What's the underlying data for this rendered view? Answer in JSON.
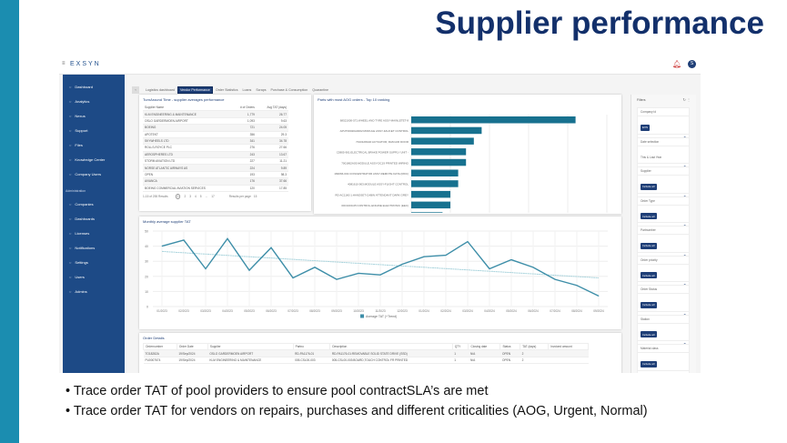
{
  "slide": {
    "title": "Supplier performance",
    "bullets": [
      "Trace order TAT of pool providers to ensure pool contractSLA’s are met",
      "Trace order TAT for vendors on repairs, purchases and different criticalities (AOG, Urgent, Normal)"
    ],
    "accent": "#1b8db0",
    "title_color": "#13306b"
  },
  "app": {
    "logo": "EXSYN",
    "avatar": "S"
  },
  "sidebar": {
    "items": [
      {
        "label": "Dashboard",
        "icon": "home-icon"
      },
      {
        "label": "Analytics",
        "icon": "chart-icon"
      },
      {
        "label": "Nexus",
        "icon": "grid-icon"
      },
      {
        "label": "Support",
        "icon": "help-icon"
      },
      {
        "label": "Files",
        "icon": "folder-icon"
      },
      {
        "label": "Knowledge Center",
        "icon": "book-icon"
      },
      {
        "label": "Company Users",
        "icon": "users-icon"
      }
    ],
    "admin_header": "Administration",
    "admin_items": [
      {
        "label": "Companies",
        "icon": "building-icon"
      },
      {
        "label": "Dashboards",
        "icon": "dashboard-icon"
      },
      {
        "label": "Licenses",
        "icon": "license-icon"
      },
      {
        "label": "Notifications",
        "icon": "bell-icon"
      },
      {
        "label": "Settings",
        "icon": "gear-icon"
      },
      {
        "label": "Users",
        "icon": "user-icon"
      },
      {
        "label": "Admins",
        "icon": "admin-icon"
      }
    ]
  },
  "tabs": [
    "Logistics dashboard",
    "Vendor Performance",
    "Order Statistics",
    "Loans",
    "Scraps",
    "Purchase & Consumption",
    "Quarantine"
  ],
  "active_tab": "Vendor Performance",
  "tat_table": {
    "title": "TurnAround Time - supplier averages performance",
    "columns": [
      "Supplier Name",
      "# of Orders",
      "Avg TAT (days)"
    ],
    "rows": [
      [
        "KLM ENGINEERING & MAINTENANCE",
        "1,779",
        "26.77"
      ],
      [
        "OSLO GARDERMOEN AIRPORT",
        "1,093",
        "9.63"
      ],
      [
        "BOEING",
        "721",
        "24.05"
      ],
      [
        "APOTEKT",
        "356",
        "29.3"
      ],
      [
        "SKYWHEELS LTD",
        "341",
        "34.78"
      ],
      [
        "ROLLS-ROYCE PLC",
        "276",
        "27.66"
      ],
      [
        "AEROSPHERES LTD",
        "243",
        "13.67"
      ],
      [
        "STORM AVIATION LTD",
        "227",
        "11.21"
      ],
      [
        "NORSE ATLANTIC AIRWAYS AS",
        "224",
        "9.89"
      ],
      [
        "OPEN",
        "193",
        "98.3"
      ],
      [
        "AVIANCA",
        "176",
        "37.66"
      ],
      [
        "BOEING COMMERCIAL AVIATION SERVICES",
        "120",
        "17.85"
      ]
    ],
    "results": "1-15 of 255 Results",
    "pages": [
      "1",
      "2",
      "3",
      "4",
      "5",
      "...",
      "17"
    ],
    "per_page_label": "Results per page",
    "per_page": "15"
  },
  "chart_data": [
    {
      "type": "bar",
      "orientation": "horizontal",
      "title": "Parts with most AOG orders - Top 10 ranking",
      "categories": [
        "68521000-571:WHEEL AND TYRE ASSY-MAINLETET-8",
        "APUT00020A0002:MODULE ASSY-FAUCET CONTROL",
        "7010128A02:ACTUATOR, RAM AIR DOOR",
        "C5805-901:ELECTRICAL BRAKE POWER SUPPLY UNIT -",
        "7001862A03:MODULE ASSY-DC19 PRINTED WIRING",
        "182066-001:CONCENTRATOR ASSY-REMOTE DATA (RDC)",
        "4081610-903:MODULE ASSY-FLIGHT CONTROL",
        "RD-AC1160-1:HANDSET-CABIN ATTENDANT DARK GREY",
        "00C1000-05:CONTROL-ENGINE ELECTRONIC (EEC)",
        "41D1VTC05:THERMOCOUPLE-SECONDARY AIR SYS TEMP"
      ],
      "series": [
        {
          "name": "total AOG orders",
          "values": [
            21,
            9,
            8,
            7,
            7,
            6,
            6,
            5,
            5,
            4
          ]
        }
      ],
      "xlim": [
        0,
        25
      ],
      "xticks": [
        "0",
        "5",
        "10",
        "15",
        "20",
        "25"
      ],
      "grid": true,
      "legend": "bottom",
      "color": "#17718f"
    },
    {
      "type": "line",
      "title": "Monthly average supplier TAT",
      "x": [
        "01/2023",
        "02/2023",
        "03/2023",
        "04/2023",
        "05/2023",
        "06/2023",
        "07/2023",
        "08/2023",
        "09/2023",
        "10/2023",
        "11/2023",
        "12/2023",
        "01/2024",
        "02/2024",
        "03/2024",
        "04/2024",
        "05/2024",
        "06/2024",
        "07/2024",
        "08/2024",
        "09/2024"
      ],
      "series": [
        {
          "name": "Average TAT (+Trend)",
          "values": [
            40,
            44,
            25,
            45,
            24,
            39,
            19,
            26,
            18,
            22,
            21,
            28,
            33,
            34,
            43,
            25,
            31,
            26,
            18,
            14,
            7
          ]
        }
      ],
      "trend": [
        36.5,
        19
      ],
      "ylim": [
        0,
        50
      ],
      "yticks": [
        "0",
        "10",
        "20",
        "30",
        "40",
        "50"
      ],
      "grid": true,
      "legend": "bottom",
      "color": "#3d8ea8",
      "trend_color": "#a8d3dc"
    }
  ],
  "orders": {
    "title": "Order Details",
    "columns": [
      "Ordernumber",
      "Order Date",
      "Supplier",
      "Partno",
      "Description",
      "QTY",
      "Closing date",
      "Status",
      "TAT (days)",
      "Invoiced amount"
    ],
    "rows": [
      [
        "TO18282A",
        "19/Sep/2024",
        "OSLO GARDERMOEN AIRPORT",
        "RD-PA1176-01",
        "RD-PA1176-01:REMOVABLE SOLID STATE DRIVE (SSD)",
        "1",
        "N/A",
        "OPEN",
        "2",
        ""
      ],
      [
        "PU0007674",
        "19/Sep/2024",
        "KLM ENGINEERING & MAINTENANCE",
        "005-CSL00-003",
        "005-CSL00-003:BOARD,TOUCH CONTROL FR PRINTED",
        "1",
        "N/A",
        "OPEN",
        "2",
        ""
      ]
    ]
  },
  "filters": {
    "title": "Filters",
    "groups": [
      {
        "label": "Company id",
        "value": "EXS",
        "chip": true
      },
      {
        "label": "Date selection",
        "value": "This & Last Year",
        "chip": false
      },
      {
        "label": "Supplier",
        "value": "Include all",
        "chip": true
      },
      {
        "label": "Order Type",
        "value": "Include all",
        "chip": true
      },
      {
        "label": "Partnumber",
        "value": "Include all",
        "chip": true
      },
      {
        "label": "Order priority",
        "value": "Include all",
        "chip": true
      },
      {
        "label": "Order Status",
        "value": "Include all",
        "chip": true
      },
      {
        "label": "Station",
        "value": "Include all",
        "chip": true
      },
      {
        "label": "Material class",
        "value": "Include all",
        "chip": true
      }
    ]
  }
}
